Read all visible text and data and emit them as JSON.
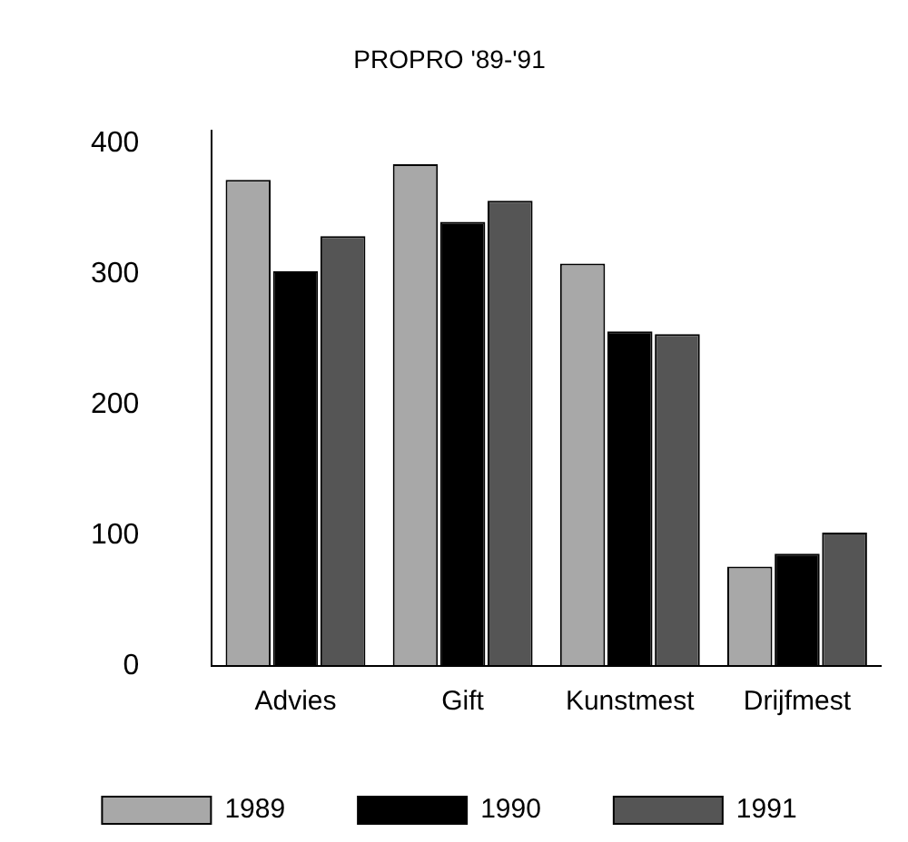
{
  "chart_data": {
    "type": "bar",
    "title": "PROPRO '89-'91",
    "categories": [
      "Advies",
      "Gift",
      "Kunstmest",
      "Drijfmest"
    ],
    "series": [
      {
        "name": "1989",
        "color": "#a8a8a8",
        "values": [
          372,
          384,
          308,
          76
        ]
      },
      {
        "name": "1990",
        "color": "#000000",
        "values": [
          302,
          340,
          256,
          86
        ]
      },
      {
        "name": "1991",
        "color": "#555555",
        "values": [
          329,
          356,
          254,
          102
        ]
      }
    ],
    "ylim": [
      0,
      410
    ],
    "yticks": [
      0,
      100,
      200,
      300,
      400
    ],
    "grid": false,
    "legend": "bottom"
  }
}
